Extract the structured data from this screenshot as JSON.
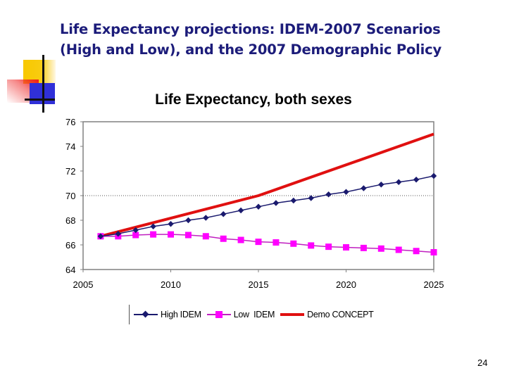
{
  "slide": {
    "title_line1": "Life Expectancy projections: IDEM-2007 Scenarios",
    "title_line2": "(High and Low), and the 2007 Demographic Policy",
    "page_number": "24",
    "logo_icon": "decorative-blocks-icon"
  },
  "colors": {
    "title": "#1c1c7a",
    "high_idem": "#1a1a6e",
    "low_idem": "#ff00ff",
    "demo_concept": "#e01010",
    "axis": "#808080"
  },
  "chart_data": {
    "type": "line",
    "title": "Life Expectancy, both sexes",
    "xlabel": "",
    "ylabel": "",
    "xlim": [
      2005,
      2025
    ],
    "ylim": [
      64,
      76
    ],
    "x_ticks": [
      2005,
      2010,
      2015,
      2020,
      2025
    ],
    "y_ticks": [
      64,
      66,
      68,
      70,
      72,
      74,
      76
    ],
    "grid": "dotted horizontal line at 70",
    "reference_line_y": 70,
    "legend_position": "bottom",
    "series": [
      {
        "name": "High IDEM",
        "marker": "diamond",
        "x": [
          2006,
          2007,
          2008,
          2009,
          2010,
          2011,
          2012,
          2013,
          2014,
          2015,
          2016,
          2017,
          2018,
          2019,
          2020,
          2021,
          2022,
          2023,
          2024,
          2025
        ],
        "values": [
          66.7,
          66.9,
          67.2,
          67.5,
          67.7,
          68.0,
          68.2,
          68.5,
          68.8,
          69.1,
          69.4,
          69.6,
          69.8,
          70.1,
          70.3,
          70.6,
          70.9,
          71.1,
          71.3,
          71.6
        ]
      },
      {
        "name": "Low  IDEM",
        "marker": "square",
        "x": [
          2006,
          2007,
          2008,
          2009,
          2010,
          2011,
          2012,
          2013,
          2014,
          2015,
          2016,
          2017,
          2018,
          2019,
          2020,
          2021,
          2022,
          2023,
          2024,
          2025
        ],
        "values": [
          66.7,
          66.7,
          66.8,
          66.85,
          66.85,
          66.8,
          66.7,
          66.5,
          66.4,
          66.25,
          66.2,
          66.1,
          65.95,
          65.85,
          65.8,
          65.75,
          65.7,
          65.6,
          65.5,
          65.4
        ]
      },
      {
        "name": "Demo CONCEPT",
        "marker": "none",
        "x": [
          2006,
          2015,
          2025
        ],
        "values": [
          66.7,
          70.0,
          75.0
        ]
      }
    ]
  }
}
